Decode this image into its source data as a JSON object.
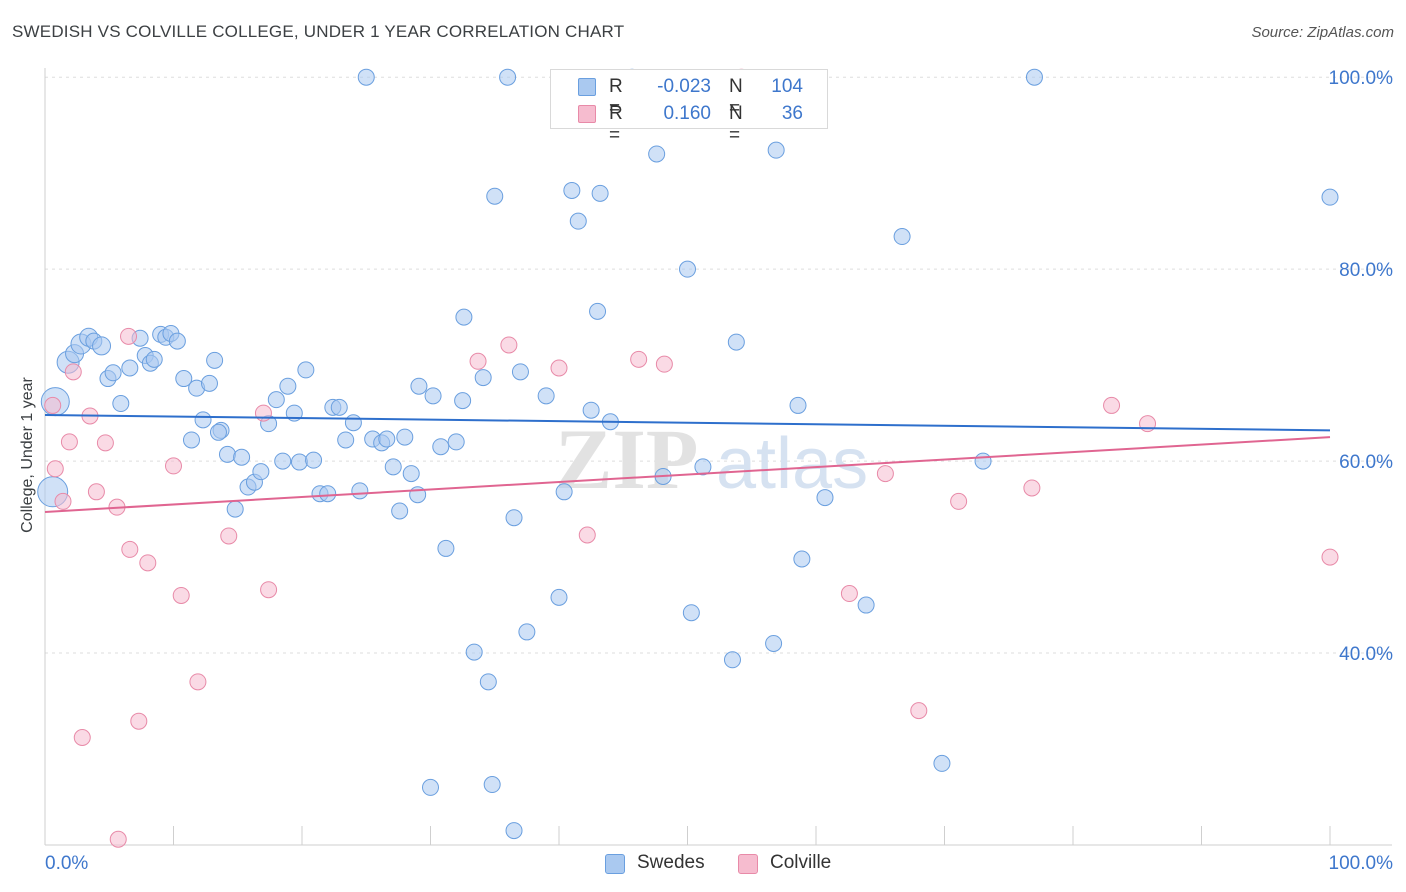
{
  "title": "SWEDISH VS COLVILLE COLLEGE, UNDER 1 YEAR CORRELATION CHART",
  "source": "Source: ZipAtlas.com",
  "watermark": {
    "part1": "ZIP",
    "part2": "atlas"
  },
  "legend": {
    "r_label": "R =",
    "n_label": "N =",
    "rows": [
      {
        "name": "Swedes",
        "r": "-0.023",
        "n": "104"
      },
      {
        "name": "Colville",
        "r": "0.160",
        "n": "36"
      }
    ]
  },
  "colors": {
    "blue_fill": "#aac9f0",
    "blue_stroke": "#6a9fdf",
    "blue_line": "#2e6fcc",
    "pink_fill": "#f6bccf",
    "pink_stroke": "#e88aa8",
    "pink_line": "#e06591",
    "value_text": "#3e77cc",
    "grid": "#dddddd",
    "axis": "#cfcfcf"
  },
  "chart_data": {
    "type": "scatter",
    "xlabel": "",
    "ylabel": "College, Under 1 year",
    "xlim": [
      0,
      100
    ],
    "ylim": [
      20,
      102
    ],
    "x_tick_labels": [
      "0.0%",
      "100.0%"
    ],
    "y_ticks": [
      40,
      60,
      80,
      100
    ],
    "y_tick_labels": [
      "40.0%",
      "60.0%",
      "80.0%",
      "100.0%"
    ],
    "grid": true,
    "legend_position": "top-center",
    "series": [
      {
        "name": "Swedes",
        "r": -0.023,
        "n": 104,
        "trend": {
          "x": [
            0,
            100
          ],
          "y": [
            64.8,
            63.2
          ]
        },
        "points": [
          [
            0.8,
            66.2,
            14
          ],
          [
            0.6,
            56.8,
            15
          ],
          [
            1.8,
            70.3,
            11
          ],
          [
            2.3,
            71.2,
            9
          ],
          [
            2.8,
            72.2,
            10
          ],
          [
            3.4,
            72.9,
            9
          ],
          [
            3.8,
            72.5,
            8
          ],
          [
            4.4,
            72.0,
            9
          ],
          [
            4.9,
            68.6,
            8
          ],
          [
            5.3,
            69.2,
            8
          ],
          [
            5.9,
            66.0,
            8
          ],
          [
            6.6,
            69.7,
            8
          ],
          [
            7.4,
            72.8,
            8
          ],
          [
            7.8,
            71.0,
            8
          ],
          [
            8.2,
            70.2,
            8
          ],
          [
            8.5,
            70.6,
            8
          ],
          [
            9.0,
            73.2,
            8
          ],
          [
            9.4,
            72.9,
            8
          ],
          [
            9.8,
            73.3,
            8
          ],
          [
            10.3,
            72.5,
            8
          ],
          [
            10.8,
            68.6,
            8
          ],
          [
            11.4,
            62.2,
            8
          ],
          [
            11.8,
            67.6,
            8
          ],
          [
            12.3,
            64.3,
            8
          ],
          [
            12.8,
            68.1,
            8
          ],
          [
            13.2,
            70.5,
            8
          ],
          [
            13.7,
            63.2,
            8
          ],
          [
            14.2,
            60.7,
            8
          ],
          [
            14.8,
            55.0,
            8
          ],
          [
            15.3,
            60.4,
            8
          ],
          [
            15.8,
            57.3,
            8
          ],
          [
            16.3,
            57.8,
            8
          ],
          [
            16.8,
            58.9,
            8
          ],
          [
            17.4,
            63.9,
            8
          ],
          [
            18.0,
            66.4,
            8
          ],
          [
            18.5,
            60.0,
            8
          ],
          [
            18.9,
            67.8,
            8
          ],
          [
            19.4,
            65.0,
            8
          ],
          [
            19.8,
            59.9,
            8
          ],
          [
            20.3,
            69.5,
            8
          ],
          [
            20.9,
            60.1,
            8
          ],
          [
            21.4,
            56.6,
            8
          ],
          [
            22.0,
            56.6,
            8
          ],
          [
            22.4,
            65.6,
            8
          ],
          [
            22.9,
            65.6,
            8
          ],
          [
            23.4,
            62.2,
            8
          ],
          [
            24.0,
            64.0,
            8
          ],
          [
            24.5,
            56.9,
            8
          ],
          [
            25.0,
            100.0,
            8
          ],
          [
            25.5,
            62.3,
            8
          ],
          [
            26.2,
            61.9,
            8
          ],
          [
            26.6,
            62.3,
            8
          ],
          [
            27.1,
            59.4,
            8
          ],
          [
            27.6,
            54.8,
            8
          ],
          [
            28.0,
            62.5,
            8
          ],
          [
            28.5,
            58.7,
            8
          ],
          [
            29.1,
            67.8,
            8
          ],
          [
            30.2,
            66.8,
            8
          ],
          [
            30.8,
            61.5,
            8
          ],
          [
            31.2,
            50.9,
            8
          ],
          [
            32.0,
            62.0,
            8
          ],
          [
            32.5,
            66.3,
            8
          ],
          [
            32.6,
            75.0,
            8
          ],
          [
            33.4,
            40.1,
            8
          ],
          [
            34.1,
            68.7,
            8
          ],
          [
            34.5,
            37.0,
            8
          ],
          [
            35.0,
            87.6,
            8
          ],
          [
            36.0,
            100.0,
            8
          ],
          [
            36.5,
            54.1,
            8
          ],
          [
            37.0,
            69.3,
            8
          ],
          [
            37.5,
            42.2,
            8
          ],
          [
            39.0,
            66.8,
            8
          ],
          [
            40.0,
            45.8,
            8
          ],
          [
            40.4,
            56.8,
            8
          ],
          [
            41.0,
            88.2,
            8
          ],
          [
            41.5,
            85.0,
            8
          ],
          [
            42.5,
            65.3,
            8
          ],
          [
            43.2,
            87.9,
            8
          ],
          [
            43.0,
            75.6,
            8
          ],
          [
            44.0,
            64.1,
            8
          ],
          [
            45.7,
            100.0,
            8
          ],
          [
            47.6,
            92.0,
            8
          ],
          [
            48.1,
            58.4,
            8
          ],
          [
            50.0,
            80.0,
            8
          ],
          [
            50.3,
            44.2,
            8
          ],
          [
            51.2,
            59.4,
            8
          ],
          [
            53.5,
            39.3,
            8
          ],
          [
            53.8,
            72.4,
            8
          ],
          [
            56.9,
            92.4,
            8
          ],
          [
            56.7,
            41.0,
            8
          ],
          [
            58.6,
            65.8,
            8
          ],
          [
            58.9,
            49.8,
            8
          ],
          [
            60.7,
            56.2,
            8
          ],
          [
            63.9,
            45.0,
            8
          ],
          [
            66.7,
            83.4,
            8
          ],
          [
            69.8,
            28.5,
            8
          ],
          [
            73.0,
            60.0,
            8
          ],
          [
            77.0,
            100.0,
            8
          ],
          [
            100.0,
            87.5,
            8
          ],
          [
            30.0,
            26.0,
            8
          ],
          [
            34.8,
            26.3,
            8
          ],
          [
            36.5,
            21.5,
            8
          ],
          [
            29.0,
            56.5,
            8
          ],
          [
            13.5,
            63.0,
            8
          ]
        ]
      },
      {
        "name": "Colville",
        "r": 0.16,
        "n": 36,
        "trend": {
          "x": [
            0,
            100
          ],
          "y": [
            54.7,
            62.5
          ]
        },
        "points": [
          [
            0.6,
            65.8,
            8
          ],
          [
            0.8,
            59.2,
            8
          ],
          [
            1.4,
            55.8,
            8
          ],
          [
            1.9,
            62.0,
            8
          ],
          [
            2.2,
            69.3,
            8
          ],
          [
            2.9,
            31.2,
            8
          ],
          [
            3.5,
            64.7,
            8
          ],
          [
            4.0,
            56.8,
            8
          ],
          [
            4.7,
            61.9,
            8
          ],
          [
            5.6,
            55.2,
            8
          ],
          [
            5.7,
            20.6,
            8
          ],
          [
            6.5,
            73.0,
            8
          ],
          [
            6.6,
            50.8,
            8
          ],
          [
            7.3,
            32.9,
            8
          ],
          [
            8.0,
            49.4,
            8
          ],
          [
            10.0,
            59.5,
            8
          ],
          [
            10.6,
            46.0,
            8
          ],
          [
            11.9,
            37.0,
            8
          ],
          [
            14.3,
            52.2,
            8
          ],
          [
            17.0,
            65.0,
            8
          ],
          [
            17.4,
            46.6,
            8
          ],
          [
            33.7,
            70.4,
            8
          ],
          [
            36.1,
            72.1,
            8
          ],
          [
            40.0,
            69.7,
            8
          ],
          [
            42.2,
            52.3,
            8
          ],
          [
            46.2,
            70.6,
            8
          ],
          [
            48.2,
            70.1,
            8
          ],
          [
            54.2,
            100.0,
            8
          ],
          [
            62.6,
            46.2,
            8
          ],
          [
            65.4,
            58.7,
            8
          ],
          [
            68.0,
            34.0,
            8
          ],
          [
            71.1,
            55.8,
            8
          ],
          [
            76.8,
            57.2,
            8
          ],
          [
            83.0,
            65.8,
            8
          ],
          [
            85.8,
            63.9,
            8
          ],
          [
            100.0,
            50.0,
            8
          ]
        ]
      }
    ]
  }
}
